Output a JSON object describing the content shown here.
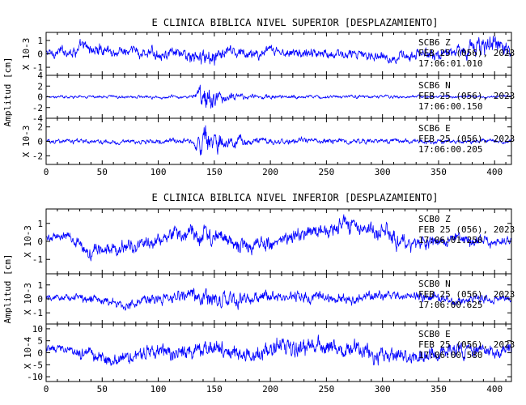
{
  "colors": {
    "trace": "#0000ff",
    "axes": "#000000",
    "background": "#ffffff"
  },
  "chart_data": [
    {
      "type": "line",
      "title": "E CLINICA BIBLICA NIVEL SUPERIOR [DESPLAZAMIENTO]",
      "ylabel": "Amplitud [cm]",
      "xlim": [
        0,
        415
      ],
      "x_ticks": [
        "0",
        "50",
        "100",
        "150",
        "200",
        "250",
        "300",
        "350",
        "400"
      ],
      "panels": [
        {
          "scale_label": "X 10-3",
          "ylim": [
            -1.6,
            1.6
          ],
          "y_ticks": [
            "1",
            "0",
            "-1"
          ],
          "station": "SCB6",
          "component": "Z",
          "date": "FEB 25 (056), 2023",
          "time": "17:06:01.010",
          "envelope": [
            [
              0,
              0.5
            ],
            [
              30,
              0.75
            ],
            [
              60,
              0.65
            ],
            [
              90,
              0.7
            ],
            [
              120,
              0.6
            ],
            [
              135,
              1.0
            ],
            [
              142,
              1.1
            ],
            [
              155,
              0.8
            ],
            [
              200,
              0.55
            ],
            [
              260,
              0.6
            ],
            [
              320,
              0.6
            ],
            [
              360,
              0.75
            ],
            [
              385,
              1.2
            ],
            [
              400,
              1.1
            ],
            [
              415,
              0.9
            ]
          ],
          "trend": [
            [
              0,
              0
            ],
            [
              30,
              0.4
            ],
            [
              60,
              0.15
            ],
            [
              100,
              0.0
            ],
            [
              140,
              -0.1
            ],
            [
              200,
              0.1
            ],
            [
              260,
              0.0
            ],
            [
              320,
              -0.2
            ],
            [
              360,
              0.1
            ],
            [
              390,
              0.8
            ],
            [
              415,
              0.3
            ]
          ]
        },
        {
          "scale_label": "",
          "ylim": [
            -4,
            4
          ],
          "y_ticks": [
            "4",
            "2",
            "0",
            "-2",
            "-4"
          ],
          "station": "SCB6",
          "component": "N",
          "date": "FEB 25 (056), 2023",
          "time": "17:06:00.150",
          "envelope": [
            [
              0,
              0.4
            ],
            [
              130,
              0.5
            ],
            [
              138,
              2.6
            ],
            [
              142,
              3.8
            ],
            [
              150,
              2.6
            ],
            [
              160,
              1.4
            ],
            [
              180,
              0.8
            ],
            [
              230,
              0.5
            ],
            [
              415,
              0.4
            ]
          ],
          "trend": [
            [
              0,
              0
            ],
            [
              415,
              0
            ]
          ]
        },
        {
          "scale_label": "X 10-3",
          "ylim": [
            -3.2,
            3.2
          ],
          "y_ticks": [
            "2",
            "0",
            "-2"
          ],
          "station": "SCB6",
          "component": "E",
          "date": "FEB 25 (056), 2023",
          "time": "17:06:00.205",
          "envelope": [
            [
              0,
              0.5
            ],
            [
              130,
              0.6
            ],
            [
              138,
              2.4
            ],
            [
              143,
              3.1
            ],
            [
              152,
              2.2
            ],
            [
              165,
              1.2
            ],
            [
              185,
              0.8
            ],
            [
              240,
              0.6
            ],
            [
              415,
              0.5
            ]
          ],
          "trend": [
            [
              0,
              0
            ],
            [
              415,
              0
            ]
          ]
        }
      ]
    },
    {
      "type": "line",
      "title": "E CLINICA BIBLICA NIVEL INFERIOR [DESPLAZAMIENTO]",
      "ylabel": "Amplitud [cm]",
      "xlim": [
        0,
        415
      ],
      "x_ticks": [
        "0",
        "50",
        "100",
        "150",
        "200",
        "250",
        "300",
        "350",
        "400"
      ],
      "panels": [
        {
          "scale_label": "X 10-3",
          "ylim": [
            -1.8,
            1.8
          ],
          "y_ticks": [
            "1",
            "0",
            "-1"
          ],
          "station": "SCB0",
          "component": "Z",
          "date": "FEB 25 (056), 2023",
          "time": "17:06:01.250",
          "envelope": [
            [
              0,
              0.3
            ],
            [
              40,
              0.6
            ],
            [
              100,
              0.6
            ],
            [
              140,
              0.75
            ],
            [
              200,
              0.6
            ],
            [
              270,
              0.7
            ],
            [
              320,
              0.7
            ],
            [
              380,
              0.5
            ],
            [
              415,
              0.4
            ]
          ],
          "trend": [
            [
              0,
              0.2
            ],
            [
              20,
              0.3
            ],
            [
              40,
              -0.6
            ],
            [
              70,
              -0.4
            ],
            [
              100,
              0.1
            ],
            [
              120,
              0.5
            ],
            [
              150,
              0.3
            ],
            [
              170,
              -0.3
            ],
            [
              200,
              -0.2
            ],
            [
              220,
              0.4
            ],
            [
              250,
              0.7
            ],
            [
              275,
              0.9
            ],
            [
              300,
              0.5
            ],
            [
              330,
              -0.4
            ],
            [
              360,
              0.2
            ],
            [
              380,
              0.1
            ],
            [
              400,
              -0.1
            ],
            [
              415,
              0.0
            ]
          ]
        },
        {
          "scale_label": "X 10-3",
          "ylim": [
            -1.8,
            1.8
          ],
          "y_ticks": [
            "1",
            "0",
            "-1"
          ],
          "station": "SCB0",
          "component": "N",
          "date": "FEB 25 (056), 2023",
          "time": "17:06:00.625",
          "envelope": [
            [
              0,
              0.35
            ],
            [
              60,
              0.6
            ],
            [
              100,
              0.6
            ],
            [
              138,
              0.9
            ],
            [
              142,
              1.4
            ],
            [
              150,
              0.9
            ],
            [
              200,
              0.6
            ],
            [
              280,
              0.6
            ],
            [
              360,
              0.5
            ],
            [
              415,
              0.4
            ]
          ],
          "trend": [
            [
              0,
              0.1
            ],
            [
              40,
              0.1
            ],
            [
              70,
              -0.5
            ],
            [
              100,
              0.0
            ],
            [
              130,
              0.3
            ],
            [
              160,
              -0.1
            ],
            [
              200,
              0.1
            ],
            [
              240,
              0.2
            ],
            [
              280,
              0.0
            ],
            [
              320,
              0.3
            ],
            [
              360,
              -0.1
            ],
            [
              415,
              0.0
            ]
          ]
        },
        {
          "scale_label": "X 10-4",
          "ylim": [
            -12,
            12
          ],
          "y_ticks": [
            "10",
            "5",
            "0",
            "-5",
            "-10"
          ],
          "station": "SCB0",
          "component": "E",
          "date": "FEB 25 (056), 2023",
          "time": "17:06:00.580",
          "envelope": [
            [
              0,
              2.5
            ],
            [
              40,
              4
            ],
            [
              80,
              4.5
            ],
            [
              140,
              5.5
            ],
            [
              170,
              5
            ],
            [
              210,
              6
            ],
            [
              250,
              6
            ],
            [
              300,
              5
            ],
            [
              360,
              4.5
            ],
            [
              415,
              3.5
            ]
          ],
          "trend": [
            [
              0,
              2
            ],
            [
              30,
              0
            ],
            [
              60,
              -3
            ],
            [
              90,
              1
            ],
            [
              120,
              -1
            ],
            [
              150,
              2
            ],
            [
              180,
              -1
            ],
            [
              210,
              3
            ],
            [
              240,
              2
            ],
            [
              270,
              3
            ],
            [
              300,
              -1
            ],
            [
              330,
              -2
            ],
            [
              360,
              1
            ],
            [
              390,
              0
            ],
            [
              415,
              1
            ]
          ]
        }
      ]
    }
  ]
}
